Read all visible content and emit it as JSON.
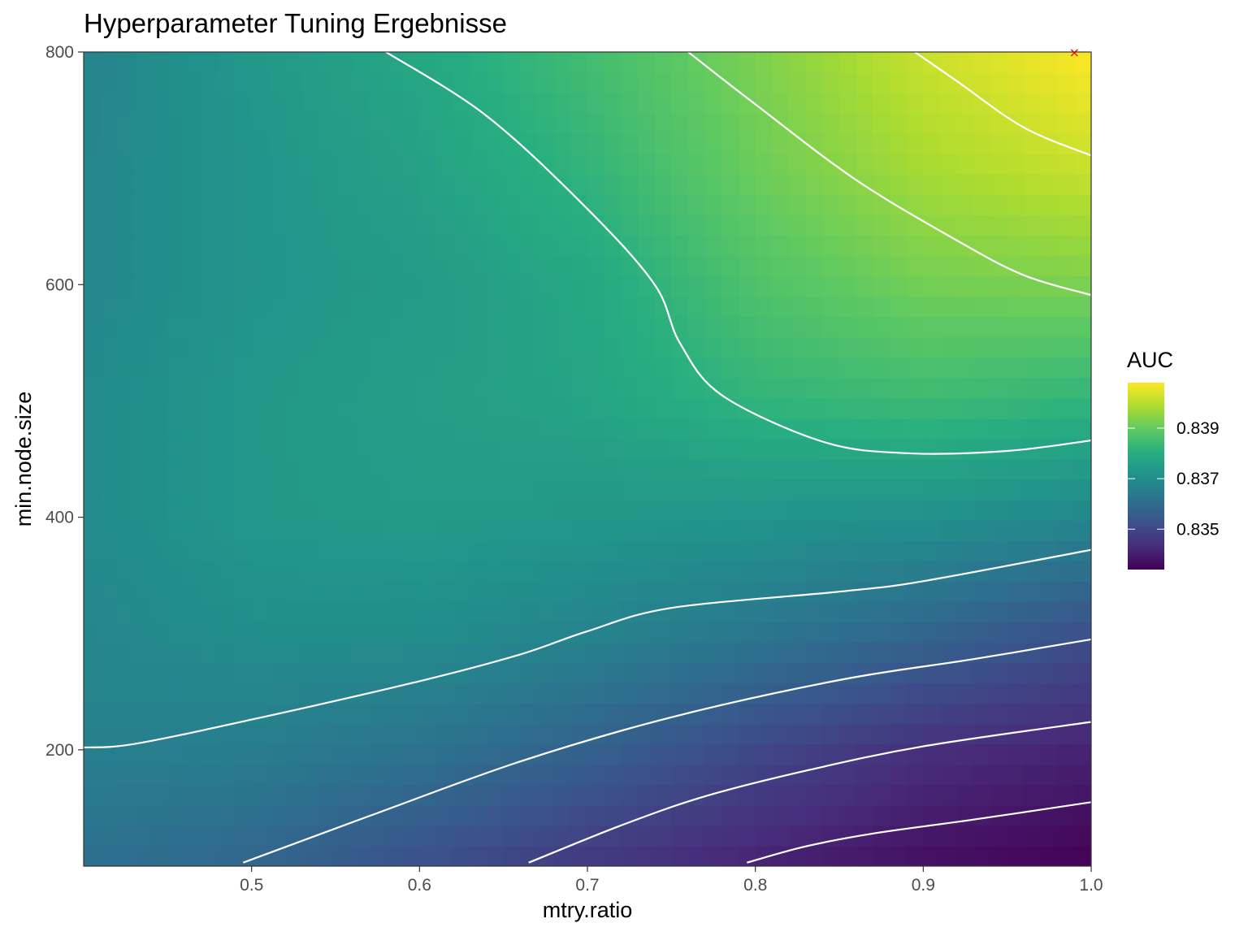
{
  "chart_data": {
    "type": "heatmap",
    "title": "Hyperparameter Tuning Ergebnisse",
    "xlabel": "mtry.ratio",
    "ylabel": "min.node.size",
    "xlim": [
      0.4,
      1.0
    ],
    "ylim": [
      100,
      800
    ],
    "x_ticks": [
      0.5,
      0.6,
      0.7,
      0.8,
      0.9,
      1.0
    ],
    "x_tick_labels": [
      "0.5",
      "0.6",
      "0.7",
      "0.8",
      "0.9",
      "1.0"
    ],
    "y_ticks": [
      200,
      400,
      600,
      800
    ],
    "y_tick_labels": [
      "200",
      "400",
      "600",
      "800"
    ],
    "grid": false,
    "colormap": "viridis",
    "legend": {
      "title": "AUC",
      "position": "right",
      "range": [
        0.8334,
        0.8408
      ],
      "ticks": [
        0.835,
        0.837,
        0.839
      ],
      "tick_labels": [
        "0.835",
        "0.837",
        "0.839"
      ]
    },
    "surface": {
      "x": [
        0.4,
        0.5,
        0.6,
        0.7,
        0.8,
        0.9,
        1.0
      ],
      "y": [
        100,
        200,
        300,
        400,
        500,
        600,
        700,
        800
      ],
      "z": [
        [
          0.8361,
          0.8358,
          0.8352,
          0.8346,
          0.8341,
          0.8337,
          0.8334
        ],
        [
          0.8366,
          0.8365,
          0.8362,
          0.8357,
          0.835,
          0.8344,
          0.8341
        ],
        [
          0.8368,
          0.837,
          0.837,
          0.8367,
          0.8363,
          0.8358,
          0.8352
        ],
        [
          0.8369,
          0.8373,
          0.8374,
          0.8373,
          0.8372,
          0.8371,
          0.8368
        ],
        [
          0.8369,
          0.8373,
          0.8375,
          0.8377,
          0.8382,
          0.8384,
          0.8382
        ],
        [
          0.8368,
          0.8372,
          0.8374,
          0.8378,
          0.8387,
          0.8392,
          0.8393
        ],
        [
          0.8368,
          0.8372,
          0.8376,
          0.8382,
          0.8391,
          0.8398,
          0.8402
        ],
        [
          0.8367,
          0.8373,
          0.8378,
          0.8385,
          0.8393,
          0.8402,
          0.8408
        ]
      ]
    },
    "contours": [
      {
        "points": [
          [
            0.58,
            800
          ],
          [
            0.64,
            745
          ],
          [
            0.7,
            665
          ],
          [
            0.74,
            600
          ],
          [
            0.755,
            550
          ],
          [
            0.78,
            505
          ],
          [
            0.84,
            465
          ],
          [
            0.89,
            455
          ],
          [
            0.95,
            457
          ],
          [
            1.0,
            466
          ]
        ]
      },
      {
        "points": [
          [
            0.76,
            800
          ],
          [
            0.8,
            755
          ],
          [
            0.86,
            690
          ],
          [
            0.92,
            638
          ],
          [
            0.96,
            608
          ],
          [
            1.0,
            591
          ]
        ]
      },
      {
        "points": [
          [
            0.895,
            800
          ],
          [
            0.92,
            775
          ],
          [
            0.96,
            735
          ],
          [
            1.0,
            711
          ]
        ]
      },
      {
        "points": [
          [
            0.4,
            202
          ],
          [
            0.43,
            205
          ],
          [
            0.5,
            226
          ],
          [
            0.6,
            259
          ],
          [
            0.66,
            282
          ],
          [
            0.7,
            302
          ],
          [
            0.75,
            322
          ],
          [
            0.85,
            336
          ],
          [
            0.9,
            345
          ],
          [
            1.0,
            372
          ]
        ]
      },
      {
        "points": [
          [
            0.495,
            103
          ],
          [
            0.57,
            143
          ],
          [
            0.66,
            190
          ],
          [
            0.75,
            228
          ],
          [
            0.85,
            260
          ],
          [
            0.93,
            278
          ],
          [
            1.0,
            295
          ]
        ]
      },
      {
        "points": [
          [
            0.665,
            103
          ],
          [
            0.72,
            135
          ],
          [
            0.77,
            160
          ],
          [
            0.83,
            182
          ],
          [
            0.9,
            203
          ],
          [
            1.0,
            224
          ]
        ]
      },
      {
        "points": [
          [
            0.795,
            103
          ],
          [
            0.83,
            117
          ],
          [
            0.87,
            128
          ],
          [
            0.93,
            140
          ],
          [
            1.0,
            155
          ]
        ]
      }
    ],
    "marker": {
      "x": 0.99,
      "y": 800,
      "symbol": "×",
      "color": "#ff0000"
    }
  }
}
